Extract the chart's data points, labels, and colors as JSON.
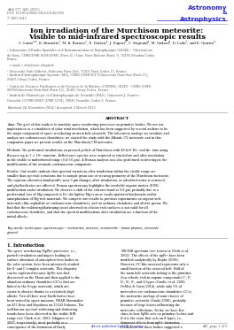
{
  "journal_info": "A&A 577, A41 (2015)\nDOI: 10.1051/0004-6361/201425398\n© ESO 2015",
  "journal_name_line1": "Astronomy",
  "journal_name_line2": "&",
  "journal_name_line3": "Astrophysics",
  "title_line1": "Ion irradiation of the Murchison meteorite:",
  "title_line2": "Visible to mid-infrared spectroscopic results",
  "authors": "C. Lantz¹²³, R. Brunetto¹, M. A. Barucci¹, E. Dartois⁴, J. Duprat⁴, C. Engrand⁴, M. Godard⁴, D. Ledu⁵, and E. Quirico⁶",
  "affil1": "¹ Laboratoire d’Études Spatiales et d’Instrumentation en Astrophysique (LESIA) – Observatoire de Paris, CNRS/UMR 8109/UPMC (Paris 6) / Univ. Paris-Diderot (Paris 7), 92195 Meudon Cedex, France",
  "affil1b": "   e-mail: c.elsi@lesia.obspm.fr",
  "affil2": "² Université Paris Diderot, Sorbonne Paris Cité, 75205 Paris Cedex 13, France",
  "affil3": "³ Institut d’Astrophysique Spatiale (IAS), CNRS (UMR 8617)/Université Paris-Sud (Paris 11), 91405 Orsay Cedex, France",
  "affil4": "⁴ Centre de Sciences Nucléaires et de Sciences de la Matière (CSNSM), IN2P3 – CNRS (UMR 8609)/Université Paris-Sud (Paris 11), 91405 Orsay Cedex, France",
  "affil5": "⁵ Institut de Planétologie et d’Astrophysique de Grenoble (IPAG), Université J. Fourier – Grenoble 1/CNRS-INSU (UMR 5274), 38041 Grenoble Cedex 9, France",
  "received": "Received 24 November 2014 / Accepted 3 March 2015",
  "abstract_title": "ABSTRACT",
  "abstract_aims": "Aims. The goal of this study is to simulate space weathering processes on primitive bodies. We use ion implantation as a simulation of solar wind irradiation, which has been suggested by several authors to be the major component of space weathering on main belt asteroids. The laboratory analogs we irradiate and analyze are carbonaceous chondrites; we started the study with the Allende CV meteorite and in this companion paper we present results on the Murchison CM meteorite.",
  "abstract_methods": "Methods. We performed irradiations on pressed pellets of Murchison with 40 keV He⁺ and Ar⁺ ions using fluences up to 1 × 10¹⁸ ions/cm². Reflectance spectra were acquired in situ before and after irradiation in the visible to mid-infrared range (0.4–16 µm). A Raman analysis was also performed to investigate the modifications of the aromatic carbonaceous component.",
  "abstract_results": "Results. Our results indicate that spectral variations after irradiation within the visible range are smaller than spectral variations due to sample grain size or viewing geometry of the Murchison meteorite. The aqueous alteration band profile near 3 µm changes after irradiation, as adsorbed water is removed, and phyllosilicates are affected. Raman spectroscopy highlights the insoluble organic matter (IOM) modification under irradiation. We observe a shift of the silicates band at 9.8 µm, probably due to a preferential loss of Mg compared to Fe; the lighter Mg is more easily sputtered backwards and/or amorphization of Mg-rich materials. We compare our results to previous experiments on organic-rich materials (like asphaltite or carbonaceous chondrites), and on ordinary chondrites and olivine grains. We find that the reddening/darkening trend observed on silicate rich surfaces is not valid for all carbonaceous chondrites, and that the spectral modifications after irradiation are a function of the initial albedo.",
  "keywords": "Key words. techniques: spectroscopic – meteorites, meteors, meteoroids – minor planets, asteroids: general",
  "section_title": "1. Introduction",
  "intro_col1": "The space weathering (SpWe) processes, i.e., particle irradiation and impact leading to surface alteration of atmosphere-less bodies in the solar system, have been intensively studied for S- and C-complex asteroids. This disparity can be explained because SpWe was first discovered on the Moon and then applied to the abundant ordinary chondrites (OCs) that are linked to the S-type asteroids, which are easier to observe thanks to a relatively high albedo. Two of these near-Earth bodies have been visited by space missions, NEAR Shoemaker on 433 Eros and Hayabusa on 25143 Itokawa. The well-known spectral reddening and darkening trends have been observed in the visible-NIR range (see Clark et al. 2001; Ishiguro et al. 2007, respectively), most probably as a consequence of the formation of finely dispersed opaque minerals (Noble et al. 2007). This has been confirmed by laboratory analysis of Itokawa grains (Noguchi et al. 2011) brought back to Earth thanks to the sample return Hayabusa mission. The nanophase reduced iron (npFe⁰) are the compounds that have been suggested as the major cause of SpWe spectral effects on OCs, that is to say the reddening and darkening of the",
  "intro_col2": "VIS-NIR spectrum (see review in Clark et al. 2002). The effects of the npFe⁰ have been modeled analytically by Hapke (2001).\n    However, OC-like material represents only a small fraction of the asteroid belt. Half of the main belt asteroids belong to the primitive (low albedo, rich in organic compounds) C-, P-, D-, B-, F-, and G-types (Gradie et al. 2002; DeMeo & Carry 2014), while only 5% of meteorites are carbonaceous chondrites (CCs), the meteoritic analogs of some classes of primitive asteroids (Grady 2000), probably because of large biases influencing the meteorite collections. So far, we have few clues to how SpWe acts on primitive bodies and if it is the same that acts on S-types, i.e., dominant effects from npFe⁰ formation. Predictions for these bodies suggested a possible limited effect on the spectral slope (Pieters et al. 2000), or even an opposite effect defined as blueing of the slope (Nesvorny et al. 2005). Contradictory results have also been obtained in laboratory SpWe ion irradiation experiments performed on primitive materials: spectral reddening on Allende (Lazzarin et al. 2006; Brunetto et al. 2014) and Frontier Mountain 95002 (Lazzarin et al. 2006), and blueing on asphaltite (Moroz et al. 2004a) and Tagish Lake meteorite (Vernazza et al. 2013) have been observed. Tagish Lake also shows a significant spectral flattening after pulse laser irradiation",
  "footer": "Article published by EDP Sciences",
  "page": "A41, page 1 of 9",
  "bg_color": "#ffffff",
  "text_color": "#000000",
  "gray_color": "#555555",
  "journal_color": "#2222cc",
  "footer_color": "#2222cc"
}
